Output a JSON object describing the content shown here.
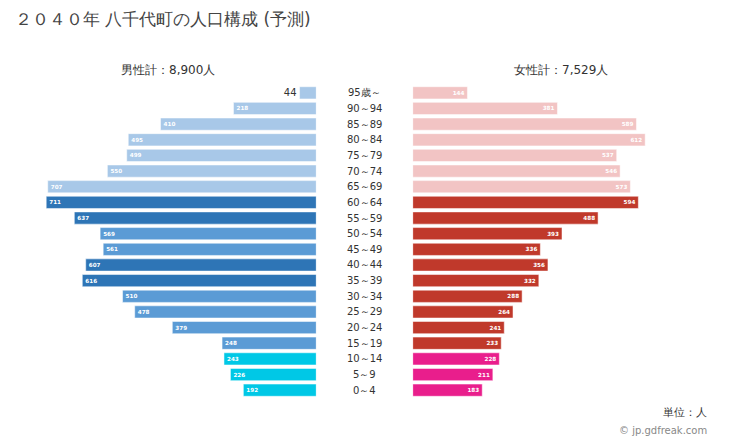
{
  "chart_data": {
    "type": "bar",
    "orientation": "horizontal",
    "title": "２０４０年 八千代町の人口構成 (予測)",
    "categories": [
      "0～4",
      "5～9",
      "10～14",
      "15～19",
      "20～24",
      "25～29",
      "30～34",
      "35～39",
      "40～44",
      "45～49",
      "50～54",
      "55～59",
      "60～64",
      "65～69",
      "70～74",
      "75～79",
      "80～84",
      "85～89",
      "90～94",
      "95歳～"
    ],
    "series": [
      {
        "name": "男性計：8,900人",
        "colors": [
          "#00c8e6",
          "#00c8e6",
          "#00c8e6",
          "#5b9bd5",
          "#5b9bd5",
          "#5b9bd5",
          "#5b9bd5",
          "#2e75b6",
          "#2e75b6",
          "#5b9bd5",
          "#5b9bd5",
          "#2e75b6",
          "#2e75b6",
          "#a8c8e8",
          "#a8c8e8",
          "#a8c8e8",
          "#a8c8e8",
          "#a8c8e8",
          "#a8c8e8",
          "#a8c8e8"
        ],
        "values": [
          192,
          226,
          243,
          248,
          379,
          478,
          510,
          616,
          607,
          561,
          569,
          637,
          711,
          707,
          550,
          499,
          495,
          410,
          218,
          44
        ]
      },
      {
        "name": "女性計：7,529人",
        "colors": [
          "#e91e8c",
          "#e91e8c",
          "#e91e8c",
          "#c0392b",
          "#c0392b",
          "#c0392b",
          "#c0392b",
          "#c0392b",
          "#c0392b",
          "#c0392b",
          "#c0392b",
          "#c0392b",
          "#c0392b",
          "#f2c4c4",
          "#f2c4c4",
          "#f2c4c4",
          "#f2c4c4",
          "#f2c4c4",
          "#f2c4c4",
          "#f2c4c4"
        ],
        "values": [
          183,
          211,
          228,
          233,
          241,
          264,
          288,
          332,
          356,
          336,
          393,
          488,
          594,
          573,
          546,
          537,
          612,
          589,
          381,
          144
        ]
      }
    ],
    "xlim": [
      0,
      780
    ],
    "data_labels": true,
    "tick_labels": false,
    "grid": false,
    "legend": false,
    "annotations": [
      "単位：人",
      "© jp.gdfreak.com"
    ]
  }
}
